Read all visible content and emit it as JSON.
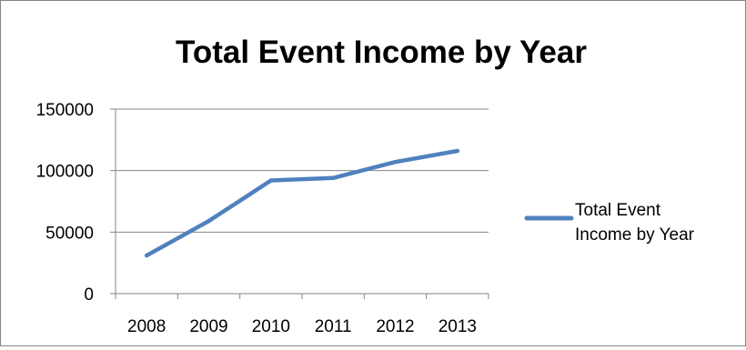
{
  "chart_data": {
    "type": "line",
    "title": "Total Event Income by Year",
    "xlabel": "",
    "ylabel": "",
    "categories": [
      "2008",
      "2009",
      "2010",
      "2011",
      "2012",
      "2013"
    ],
    "series": [
      {
        "name": "Total Event Income by Year",
        "values": [
          31000,
          59000,
          92000,
          94000,
          107000,
          116000
        ]
      }
    ],
    "ylim": [
      0,
      150000
    ],
    "yticks": [
      "0",
      "50000",
      "100000",
      "150000"
    ],
    "grid": true,
    "legend_position": "right",
    "legend_lines": [
      "Total Event",
      "Income by Year"
    ],
    "colors": {
      "series": "#4f81bd",
      "grid": "#868686",
      "axis": "#868686",
      "border": "#868686"
    }
  }
}
